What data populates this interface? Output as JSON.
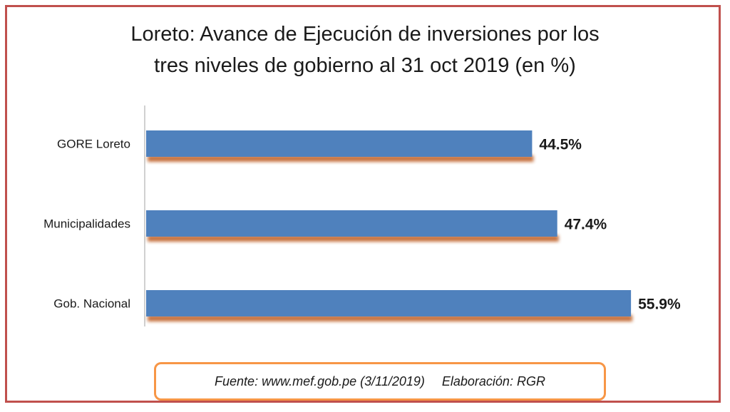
{
  "chart_data": {
    "type": "bar",
    "orientation": "horizontal",
    "title": "Loreto: Avance de Ejecución de inversiones por los tres niveles de gobierno al 31 oct 2019 (en %)",
    "title_lines": [
      "Loreto: Avance de Ejecución de inversiones por los",
      "tres niveles de gobierno al 31 oct 2019 (en %)"
    ],
    "categories": [
      "GORE Loreto",
      "Municipalidades",
      "Gob. Nacional"
    ],
    "values": [
      44.5,
      47.4,
      55.9
    ],
    "value_labels": [
      "44.5%",
      "47.4%",
      "55.9%"
    ],
    "xlim": [
      0,
      60
    ],
    "grid": false,
    "bar_color": "#4f81bd",
    "shadow_color": "#c0632a"
  },
  "footer": {
    "source": "Fuente: www.mef.gob.pe (3/11/2019)",
    "credit": "Elaboración: RGR"
  },
  "colors": {
    "frame_border": "#c0504d",
    "source_border": "#f79646"
  }
}
